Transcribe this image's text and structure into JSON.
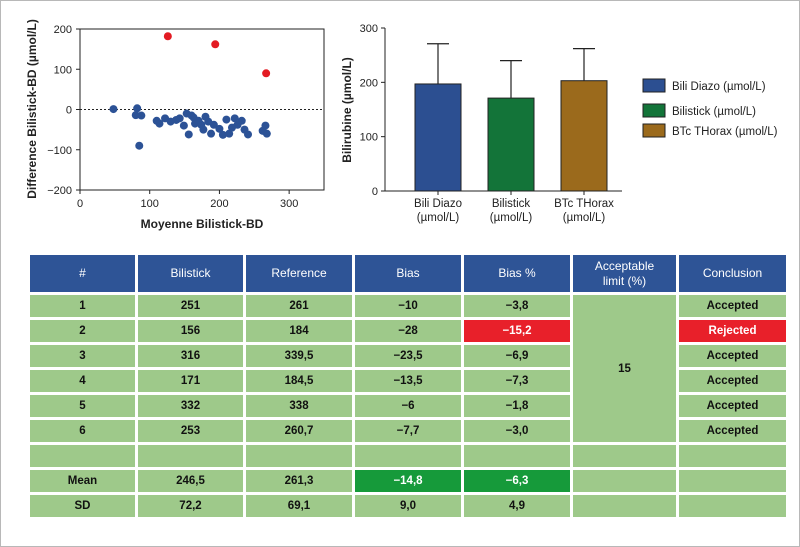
{
  "chart_data": [
    {
      "type": "scatter",
      "xlabel": "Moyenne Bilistick-BD",
      "ylabel": "Difference Bilistick-BD (µmol/L)",
      "xlim": [
        0,
        350
      ],
      "ylim": [
        -200,
        200
      ],
      "xticks": [
        "0",
        "100",
        "200",
        "300"
      ],
      "yticks": [
        "200",
        "100",
        "0",
        "−100",
        "−200"
      ],
      "zero_line": "dotted",
      "series": [
        {
          "color": "#2c5296",
          "points": [
            [
              48,
              1
            ],
            [
              80,
              -14
            ],
            [
              82,
              3
            ],
            [
              85,
              -90
            ],
            [
              88,
              -15
            ],
            [
              110,
              -28
            ],
            [
              114,
              -35
            ],
            [
              122,
              -22
            ],
            [
              130,
              -30
            ],
            [
              138,
              -26
            ],
            [
              143,
              -22
            ],
            [
              149,
              -40
            ],
            [
              153,
              -10
            ],
            [
              156,
              -62
            ],
            [
              160,
              -15
            ],
            [
              163,
              -20
            ],
            [
              165,
              -35
            ],
            [
              170,
              -28
            ],
            [
              174,
              -38
            ],
            [
              177,
              -50
            ],
            [
              180,
              -18
            ],
            [
              184,
              -30
            ],
            [
              188,
              -60
            ],
            [
              192,
              -38
            ],
            [
              200,
              -48
            ],
            [
              205,
              -63
            ],
            [
              210,
              -25
            ],
            [
              214,
              -60
            ],
            [
              218,
              -45
            ],
            [
              222,
              -22
            ],
            [
              226,
              -38
            ],
            [
              232,
              -28
            ],
            [
              236,
              -50
            ],
            [
              241,
              -62
            ],
            [
              262,
              -53
            ],
            [
              266,
              -40
            ],
            [
              268,
              -60
            ]
          ]
        },
        {
          "color": "#e31b23",
          "points": [
            [
              126,
              182
            ],
            [
              194,
              162
            ],
            [
              267,
              90
            ]
          ]
        }
      ]
    },
    {
      "type": "bar",
      "ylabel": "Bilirubine (µmol/L)",
      "ylim": [
        0,
        300
      ],
      "yticks": [
        "300",
        "200",
        "100",
        "0"
      ],
      "legend_position": "right",
      "categories": [
        {
          "line1": "Bili Diazo",
          "line2": "(µmol/L)"
        },
        {
          "line1": "Bilistick",
          "line2": "(µmol/L)"
        },
        {
          "line1": "BTc THorax",
          "line2": "(µmol/L)"
        }
      ],
      "series": [
        {
          "name": "Bili Diazo (µmol/L)",
          "value": 197,
          "error_upper": 271,
          "color": "#2c4f91"
        },
        {
          "name": "Bilistick (µmol/L)",
          "value": 171,
          "error_upper": 240,
          "color": "#137439"
        },
        {
          "name": "BTc THorax (µmol/L)",
          "value": 203,
          "error_upper": 262,
          "color": "#9b6a1c"
        }
      ]
    }
  ],
  "table": {
    "headers": [
      "#",
      "Bilistick",
      "Reference",
      "Bias",
      "Bias %",
      "Acceptable\nlimit (%)",
      "Conclusion"
    ],
    "acceptable_limit": "15",
    "rows": [
      {
        "id": "1",
        "bilistick": "251",
        "reference": "261",
        "bias": "−10",
        "bias_pct": "−3,8",
        "conclusion": "Accepted"
      },
      {
        "id": "2",
        "bilistick": "156",
        "reference": "184",
        "bias": "−28",
        "bias_pct": "−15,2",
        "conclusion": "Rejected"
      },
      {
        "id": "3",
        "bilistick": "316",
        "reference": "339,5",
        "bias": "−23,5",
        "bias_pct": "−6,9",
        "conclusion": "Accepted"
      },
      {
        "id": "4",
        "bilistick": "171",
        "reference": "184,5",
        "bias": "−13,5",
        "bias_pct": "−7,3",
        "conclusion": "Accepted"
      },
      {
        "id": "5",
        "bilistick": "332",
        "reference": "338",
        "bias": "−6",
        "bias_pct": "−1,8",
        "conclusion": "Accepted"
      },
      {
        "id": "6",
        "bilistick": "253",
        "reference": "260,7",
        "bias": "−7,7",
        "bias_pct": "−3,0",
        "conclusion": "Accepted"
      }
    ],
    "summary": [
      {
        "label": "Mean",
        "bilistick": "246,5",
        "reference": "261,3",
        "bias": "−14,8",
        "bias_pct": "−6,3"
      },
      {
        "label": "SD",
        "bilistick": "72,2",
        "reference": "69,1",
        "bias": "9,0",
        "bias_pct": "4,9"
      }
    ],
    "colors": {
      "header": "#2e5496",
      "cell": "#9ec98a",
      "rejected": "#e8202a",
      "highlight": "#169a3a"
    }
  }
}
